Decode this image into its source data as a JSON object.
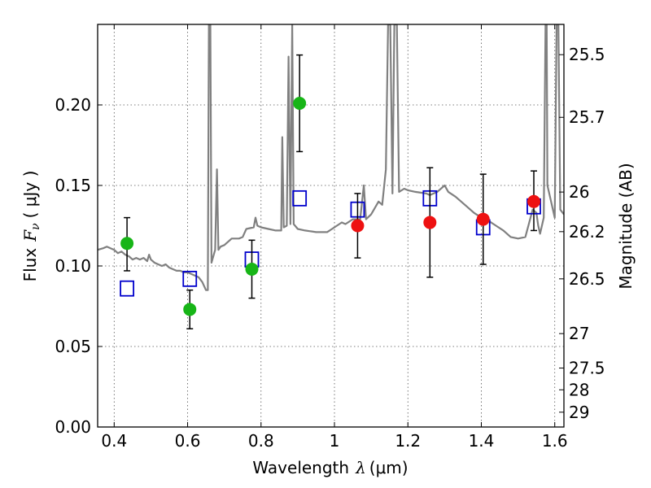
{
  "chart_data": {
    "type": "scatter",
    "xlabel": "Wavelength",
    "xlabel_symbol": "λ",
    "xlabel_unit": "(μm)",
    "ylabel": "Flux",
    "ylabel_symbol": "F",
    "ylabel_subscript": "ν",
    "ylabel_unit": "( μJy )",
    "y2label": "Magnitude (AB)",
    "xlim": [
      0.355,
      1.625
    ],
    "ylim": [
      0.0,
      0.25
    ],
    "grid": true,
    "x_ticks": [
      0.4,
      0.6,
      0.8,
      1.0,
      1.2,
      1.4,
      1.6
    ],
    "x_tick_labels": [
      "0.4",
      "0.6",
      "0.8",
      "1",
      "1.2",
      "1.4",
      "1.6"
    ],
    "y_ticks": [
      0.0,
      0.05,
      0.1,
      0.15,
      0.2
    ],
    "y_tick_labels": [
      "0.00",
      "0.05",
      "0.10",
      "0.15",
      "0.20"
    ],
    "y2_ticks": [
      {
        "label": "25.5",
        "flux": 0.2312
      },
      {
        "label": "25.7",
        "flux": 0.1923
      },
      {
        "label": "26",
        "flux": 0.1459
      },
      {
        "label": "26.2",
        "flux": 0.1213
      },
      {
        "label": "26.5",
        "flux": 0.092
      },
      {
        "label": "27",
        "flux": 0.058
      },
      {
        "label": "27.5",
        "flux": 0.0366
      },
      {
        "label": "28",
        "flux": 0.0231
      },
      {
        "label": "29",
        "flux": 0.0092
      }
    ],
    "colors": {
      "sed": "#808080",
      "green": "#17b517",
      "red": "#ee1111",
      "model": "#0000cc",
      "errorbar": "#000000",
      "grid": "#555555"
    },
    "series": [
      {
        "kind": "green-circles",
        "points": [
          {
            "x": 0.435,
            "y": 0.114,
            "err": [
              0.017,
              0.016
            ]
          },
          {
            "x": 0.606,
            "y": 0.073,
            "err": [
              0.012,
              0.012
            ]
          },
          {
            "x": 0.775,
            "y": 0.098,
            "err": [
              0.018,
              0.018
            ]
          },
          {
            "x": 0.905,
            "y": 0.201,
            "err": [
              0.03,
              0.03
            ]
          }
        ]
      },
      {
        "kind": "red-circles",
        "points": [
          {
            "x": 1.063,
            "y": 0.125,
            "err": [
              0.02,
              0.02
            ]
          },
          {
            "x": 1.26,
            "y": 0.127,
            "err": [
              0.034,
              0.034
            ]
          },
          {
            "x": 1.405,
            "y": 0.129,
            "err": [
              0.028,
              0.028
            ]
          },
          {
            "x": 1.543,
            "y": 0.14,
            "err": [
              0.018,
              0.019
            ]
          }
        ]
      },
      {
        "kind": "model-squares",
        "points": [
          {
            "x": 0.435,
            "y": 0.086
          },
          {
            "x": 0.606,
            "y": 0.092
          },
          {
            "x": 0.775,
            "y": 0.104
          },
          {
            "x": 0.905,
            "y": 0.142
          },
          {
            "x": 1.063,
            "y": 0.135
          },
          {
            "x": 1.26,
            "y": 0.142
          },
          {
            "x": 1.405,
            "y": 0.124
          },
          {
            "x": 1.543,
            "y": 0.137
          }
        ]
      }
    ],
    "sed_line": [
      [
        0.355,
        0.11
      ],
      [
        0.37,
        0.111
      ],
      [
        0.38,
        0.112
      ],
      [
        0.39,
        0.111
      ],
      [
        0.4,
        0.11
      ],
      [
        0.41,
        0.108
      ],
      [
        0.42,
        0.109
      ],
      [
        0.43,
        0.107
      ],
      [
        0.44,
        0.106
      ],
      [
        0.45,
        0.104
      ],
      [
        0.46,
        0.105
      ],
      [
        0.47,
        0.104
      ],
      [
        0.48,
        0.105
      ],
      [
        0.49,
        0.103
      ],
      [
        0.495,
        0.107
      ],
      [
        0.5,
        0.104
      ],
      [
        0.51,
        0.102
      ],
      [
        0.52,
        0.101
      ],
      [
        0.53,
        0.1
      ],
      [
        0.54,
        0.101
      ],
      [
        0.55,
        0.099
      ],
      [
        0.56,
        0.098
      ],
      [
        0.57,
        0.097
      ],
      [
        0.58,
        0.097
      ],
      [
        0.59,
        0.096
      ],
      [
        0.6,
        0.096
      ],
      [
        0.61,
        0.095
      ],
      [
        0.62,
        0.094
      ],
      [
        0.63,
        0.093
      ],
      [
        0.64,
        0.09
      ],
      [
        0.65,
        0.085
      ],
      [
        0.655,
        0.085
      ],
      [
        0.658,
        0.25
      ],
      [
        0.662,
        0.25
      ],
      [
        0.665,
        0.102
      ],
      [
        0.675,
        0.11
      ],
      [
        0.68,
        0.16
      ],
      [
        0.684,
        0.11
      ],
      [
        0.69,
        0.112
      ],
      [
        0.7,
        0.113
      ],
      [
        0.72,
        0.117
      ],
      [
        0.74,
        0.117
      ],
      [
        0.75,
        0.118
      ],
      [
        0.76,
        0.123
      ],
      [
        0.78,
        0.124
      ],
      [
        0.785,
        0.13
      ],
      [
        0.79,
        0.125
      ],
      [
        0.8,
        0.124
      ],
      [
        0.82,
        0.123
      ],
      [
        0.84,
        0.122
      ],
      [
        0.855,
        0.122
      ],
      [
        0.858,
        0.18
      ],
      [
        0.862,
        0.124
      ],
      [
        0.87,
        0.125
      ],
      [
        0.875,
        0.23
      ],
      [
        0.88,
        0.126
      ],
      [
        0.885,
        0.25
      ],
      [
        0.889,
        0.126
      ],
      [
        0.9,
        0.123
      ],
      [
        0.92,
        0.122
      ],
      [
        0.95,
        0.121
      ],
      [
        0.98,
        0.121
      ],
      [
        1.0,
        0.124
      ],
      [
        1.02,
        0.127
      ],
      [
        1.03,
        0.126
      ],
      [
        1.05,
        0.129
      ],
      [
        1.07,
        0.129
      ],
      [
        1.08,
        0.15
      ],
      [
        1.086,
        0.129
      ],
      [
        1.1,
        0.132
      ],
      [
        1.12,
        0.14
      ],
      [
        1.13,
        0.138
      ],
      [
        1.14,
        0.16
      ],
      [
        1.146,
        0.25
      ],
      [
        1.152,
        0.25
      ],
      [
        1.158,
        0.145
      ],
      [
        1.163,
        0.25
      ],
      [
        1.17,
        0.25
      ],
      [
        1.176,
        0.146
      ],
      [
        1.19,
        0.148
      ],
      [
        1.2,
        0.147
      ],
      [
        1.22,
        0.146
      ],
      [
        1.25,
        0.145
      ],
      [
        1.26,
        0.144
      ],
      [
        1.28,
        0.146
      ],
      [
        1.3,
        0.15
      ],
      [
        1.31,
        0.146
      ],
      [
        1.33,
        0.143
      ],
      [
        1.36,
        0.137
      ],
      [
        1.38,
        0.133
      ],
      [
        1.4,
        0.13
      ],
      [
        1.42,
        0.128
      ],
      [
        1.44,
        0.125
      ],
      [
        1.46,
        0.122
      ],
      [
        1.48,
        0.118
      ],
      [
        1.5,
        0.117
      ],
      [
        1.52,
        0.118
      ],
      [
        1.54,
        0.135
      ],
      [
        1.55,
        0.133
      ],
      [
        1.555,
        0.125
      ],
      [
        1.56,
        0.12
      ],
      [
        1.57,
        0.13
      ],
      [
        1.575,
        0.25
      ],
      [
        1.578,
        0.25
      ],
      [
        1.58,
        0.15
      ],
      [
        1.59,
        0.14
      ],
      [
        1.6,
        0.13
      ],
      [
        1.605,
        0.25
      ],
      [
        1.61,
        0.25
      ],
      [
        1.615,
        0.135
      ],
      [
        1.625,
        0.132
      ]
    ]
  }
}
